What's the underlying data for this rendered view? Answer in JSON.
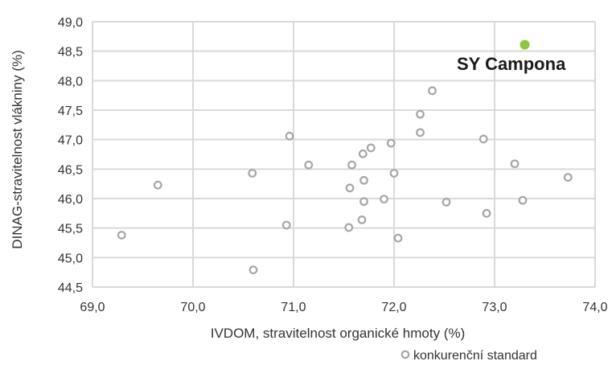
{
  "chart_data": {
    "type": "scatter",
    "xlabel": "IVDOM, stravitelnost organické hmoty (%)",
    "ylabel": "DINAG-stravitelnost vlákniny (%)",
    "xlim": [
      69.0,
      74.0
    ],
    "ylim": [
      44.5,
      49.0
    ],
    "x_ticks": [
      "69,0",
      "70,0",
      "71,0",
      "72,0",
      "73,0",
      "74,0"
    ],
    "y_ticks": [
      "44,5",
      "45,0",
      "45,5",
      "46,0",
      "46,5",
      "47,0",
      "47,5",
      "48,0",
      "48,5",
      "49,0"
    ],
    "grid": true,
    "legend_position": "bottom-right",
    "colors": {
      "standard": "#a6a6a6",
      "highlight": "#8dc63f",
      "grid": "#d9d9d9"
    },
    "series": [
      {
        "name": "konkurenční standard",
        "marker": "hollow-circle",
        "points": [
          [
            69.29,
            45.38
          ],
          [
            69.65,
            46.23
          ],
          [
            70.59,
            46.43
          ],
          [
            70.6,
            44.79
          ],
          [
            70.93,
            45.55
          ],
          [
            70.96,
            47.06
          ],
          [
            71.15,
            46.57
          ],
          [
            71.55,
            45.51
          ],
          [
            71.56,
            46.18
          ],
          [
            71.58,
            46.57
          ],
          [
            71.68,
            45.64
          ],
          [
            71.69,
            46.76
          ],
          [
            71.7,
            45.95
          ],
          [
            71.7,
            46.31
          ],
          [
            71.77,
            46.86
          ],
          [
            71.9,
            45.99
          ],
          [
            71.97,
            46.94
          ],
          [
            72.0,
            46.43
          ],
          [
            72.04,
            45.33
          ],
          [
            72.26,
            47.43
          ],
          [
            72.26,
            47.12
          ],
          [
            72.38,
            47.83
          ],
          [
            72.52,
            45.94
          ],
          [
            72.89,
            47.01
          ],
          [
            72.92,
            45.75
          ],
          [
            73.2,
            46.59
          ],
          [
            73.28,
            45.97
          ],
          [
            73.73,
            46.36
          ]
        ]
      },
      {
        "label": "SY Campona",
        "marker": "filled-circle",
        "points": [
          [
            73.3,
            48.61
          ]
        ]
      }
    ]
  }
}
